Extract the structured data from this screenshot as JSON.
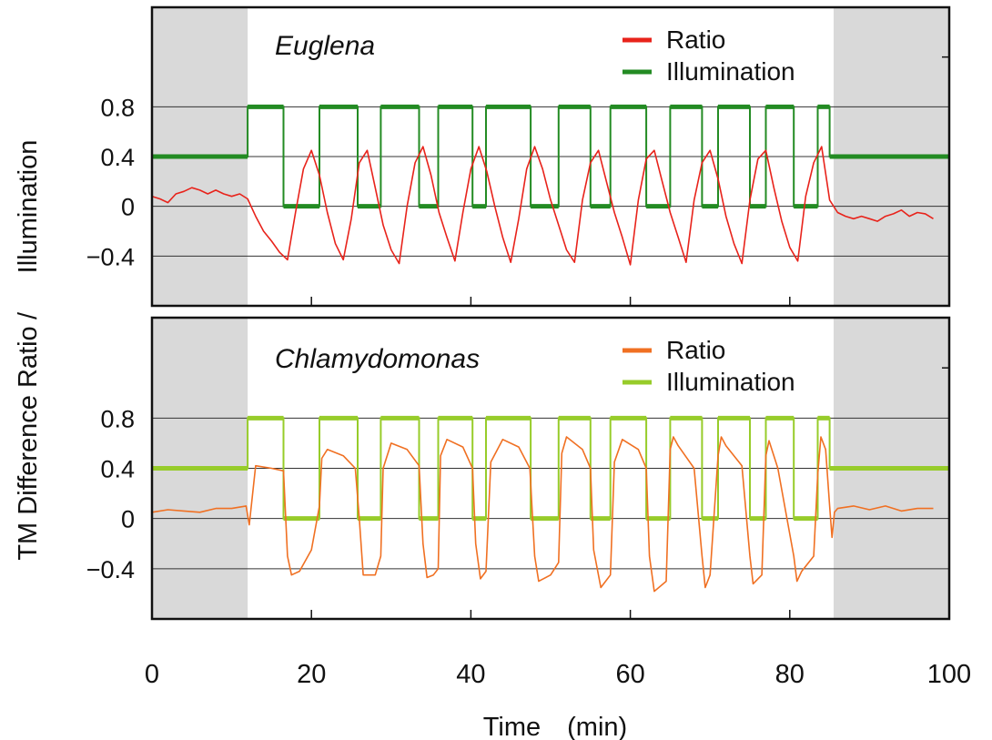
{
  "figure": {
    "ylabel_left": "TM Difference Ratio",
    "ylabel_sep": "/",
    "ylabel_right": "Illumination",
    "xlabel": "Time　(min)"
  },
  "chart_data": [
    {
      "type": "line",
      "title": "Euglena",
      "xlabel": "Time　(min)",
      "ylabel": "TM Difference Ratio / Illumination",
      "xlim": [
        0,
        100
      ],
      "ylim": [
        -0.8,
        1.6
      ],
      "yticks": [
        -0.4,
        0,
        0.4,
        0.8
      ],
      "ytick_labels": [
        "−0.4",
        "0",
        "0.4",
        "0.8"
      ],
      "grid": true,
      "legend_position": "top-right",
      "shaded_regions": [
        [
          0,
          12
        ],
        [
          85.5,
          100
        ]
      ],
      "series": [
        {
          "name": "Ratio",
          "color": "#e8231b",
          "x": [
            0,
            1,
            2,
            3,
            4,
            5,
            6,
            7,
            8,
            9,
            10,
            11,
            12,
            13,
            14,
            15,
            16,
            17,
            18,
            19,
            20,
            21,
            22,
            23,
            24,
            25,
            26,
            27,
            28,
            29,
            30,
            31,
            32,
            33,
            34,
            35,
            36,
            37,
            38,
            39,
            40,
            41,
            42,
            43,
            44,
            45,
            46,
            47,
            48,
            49,
            50,
            51,
            52,
            53,
            54,
            55,
            56,
            57,
            58,
            59,
            60,
            61,
            62,
            63,
            64,
            65,
            66,
            67,
            68,
            69,
            70,
            71,
            72,
            73,
            74,
            75,
            76,
            77,
            78,
            79,
            80,
            81,
            82,
            83,
            84,
            85,
            86,
            87,
            88,
            89,
            90,
            91,
            92,
            93,
            94,
            95,
            96,
            97,
            98
          ],
          "y": [
            0.08,
            0.06,
            0.03,
            0.1,
            0.12,
            0.15,
            0.13,
            0.1,
            0.13,
            0.1,
            0.08,
            0.1,
            0.06,
            -0.08,
            -0.2,
            -0.28,
            -0.37,
            -0.43,
            -0.05,
            0.3,
            0.45,
            0.25,
            -0.05,
            -0.3,
            -0.43,
            -0.1,
            0.35,
            0.45,
            0.15,
            -0.15,
            -0.35,
            -0.46,
            0,
            0.35,
            0.48,
            0.25,
            -0.05,
            -0.25,
            -0.44,
            -0.05,
            0.3,
            0.48,
            0.28,
            0,
            -0.25,
            -0.45,
            -0.1,
            0.3,
            0.48,
            0.3,
            0.05,
            -0.15,
            -0.35,
            -0.45,
            0.05,
            0.35,
            0.45,
            0.2,
            -0.05,
            -0.25,
            -0.47,
            0.05,
            0.38,
            0.45,
            0.2,
            -0.05,
            -0.25,
            -0.45,
            0.05,
            0.35,
            0.45,
            0.22,
            -0.08,
            -0.3,
            -0.46,
            0.05,
            0.38,
            0.45,
            0.15,
            -0.12,
            -0.33,
            -0.44,
            0.08,
            0.35,
            0.48,
            0.05,
            -0.05,
            -0.08,
            -0.1,
            -0.08,
            -0.1,
            -0.12,
            -0.08,
            -0.06,
            -0.03,
            -0.08,
            -0.05,
            -0.06,
            -0.1
          ]
        },
        {
          "name": "Illumination",
          "color": "#238b23",
          "x": [
            0,
            12,
            12,
            16.5,
            16.5,
            21,
            21,
            25.8,
            25.8,
            28.7,
            28.7,
            33.5,
            33.5,
            35.9,
            35.9,
            40.2,
            40.2,
            41.9,
            41.9,
            47.5,
            47.5,
            51,
            51,
            55,
            55,
            57.5,
            57.5,
            62,
            62,
            65,
            65,
            69,
            69,
            71,
            71,
            75,
            75,
            77,
            77,
            80.5,
            80.5,
            83.5,
            83.5,
            85,
            85,
            100
          ],
          "y": [
            0.4,
            0.4,
            0.8,
            0.8,
            0,
            0,
            0.8,
            0.8,
            0,
            0,
            0.8,
            0.8,
            0,
            0,
            0.8,
            0.8,
            0,
            0,
            0.8,
            0.8,
            0,
            0,
            0.8,
            0.8,
            0,
            0,
            0.8,
            0.8,
            0,
            0,
            0.8,
            0.8,
            0,
            0,
            0.8,
            0.8,
            0,
            0,
            0.8,
            0.8,
            0,
            0,
            0.8,
            0.8,
            0.4,
            0.4
          ]
        }
      ]
    },
    {
      "type": "line",
      "title": "Chlamydomonas",
      "xlabel": "Time　(min)",
      "ylabel": "TM Difference Ratio / Illumination",
      "xlim": [
        0,
        100
      ],
      "ylim": [
        -0.8,
        1.6
      ],
      "yticks": [
        -0.4,
        0,
        0.4,
        0.8
      ],
      "ytick_labels": [
        "−0.4",
        "0",
        "0.4",
        "0.8"
      ],
      "grid": true,
      "legend_position": "top-right",
      "shaded_regions": [
        [
          0,
          12
        ],
        [
          85.5,
          100
        ]
      ],
      "series": [
        {
          "name": "Ratio",
          "color": "#f07022",
          "x": [
            0,
            2,
            4,
            6,
            8,
            10,
            11.8,
            12.2,
            13,
            15,
            16.5,
            17,
            17.5,
            18.5,
            20,
            21,
            21.3,
            22,
            24,
            25.5,
            26,
            26.5,
            28,
            28.7,
            29,
            30,
            32,
            33.5,
            34,
            34.5,
            35.3,
            35.9,
            36.2,
            37,
            39,
            40.2,
            40.6,
            41.2,
            41.9,
            42.5,
            44,
            46,
            47.4,
            48,
            48.5,
            50,
            51,
            51.4,
            52,
            54,
            55,
            55.4,
            56.3,
            57.5,
            58,
            59,
            61,
            62,
            62.4,
            63,
            64.5,
            65,
            65.4,
            66,
            68,
            69,
            69.4,
            70,
            71,
            71.4,
            72,
            74,
            75,
            75.4,
            76.5,
            77,
            77.4,
            78.5,
            80.5,
            80.9,
            81.5,
            83,
            83.5,
            83.9,
            84.5,
            85,
            85.3,
            85.6,
            86,
            88,
            90,
            92,
            94,
            96,
            98
          ],
          "y": [
            0.05,
            0.07,
            0.06,
            0.05,
            0.08,
            0.08,
            0.1,
            -0.05,
            0.42,
            0.4,
            0.38,
            -0.3,
            -0.45,
            -0.42,
            -0.25,
            0.1,
            0.48,
            0.55,
            0.5,
            0.4,
            0,
            -0.45,
            -0.45,
            -0.3,
            0.4,
            0.6,
            0.55,
            0.42,
            -0.2,
            -0.47,
            -0.45,
            -0.4,
            0.5,
            0.63,
            0.57,
            0.4,
            -0.2,
            -0.48,
            -0.42,
            0.45,
            0.63,
            0.57,
            0.4,
            -0.3,
            -0.5,
            -0.45,
            -0.35,
            0.52,
            0.65,
            0.55,
            0.4,
            -0.25,
            -0.55,
            -0.45,
            0.45,
            0.63,
            0.55,
            0.4,
            -0.3,
            -0.58,
            -0.5,
            0.55,
            0.65,
            0.58,
            0.4,
            -0.3,
            -0.55,
            -0.45,
            0.5,
            0.65,
            0.58,
            0.42,
            -0.3,
            -0.52,
            -0.45,
            0.5,
            0.62,
            0.4,
            -0.3,
            -0.5,
            -0.42,
            -0.3,
            0.35,
            0.65,
            0.55,
            0.1,
            -0.15,
            0.05,
            0.08,
            0.1,
            0.07,
            0.1,
            0.06,
            0.08,
            0.08
          ]
        },
        {
          "name": "Illumination",
          "color": "#97cc2a",
          "x": [
            0,
            12,
            12,
            16.5,
            16.5,
            21,
            21,
            25.8,
            25.8,
            28.7,
            28.7,
            33.5,
            33.5,
            35.9,
            35.9,
            40.2,
            40.2,
            41.9,
            41.9,
            47.5,
            47.5,
            51,
            51,
            55,
            55,
            57.5,
            57.5,
            62,
            62,
            65,
            65,
            69,
            69,
            71,
            71,
            75,
            75,
            77,
            77,
            80.5,
            80.5,
            83.5,
            83.5,
            85,
            85,
            100
          ],
          "y": [
            0.4,
            0.4,
            0.8,
            0.8,
            0,
            0,
            0.8,
            0.8,
            0,
            0,
            0.8,
            0.8,
            0,
            0,
            0.8,
            0.8,
            0,
            0,
            0.8,
            0.8,
            0,
            0,
            0.8,
            0.8,
            0,
            0,
            0.8,
            0.8,
            0,
            0,
            0.8,
            0.8,
            0,
            0,
            0.8,
            0.8,
            0,
            0,
            0.8,
            0.8,
            0,
            0,
            0.8,
            0.8,
            0.4,
            0.4
          ]
        }
      ]
    }
  ],
  "xaxis": {
    "ticks": [
      0,
      20,
      40,
      60,
      80,
      100
    ],
    "tick_labels": [
      "0",
      "20",
      "40",
      "60",
      "80",
      "100"
    ]
  }
}
